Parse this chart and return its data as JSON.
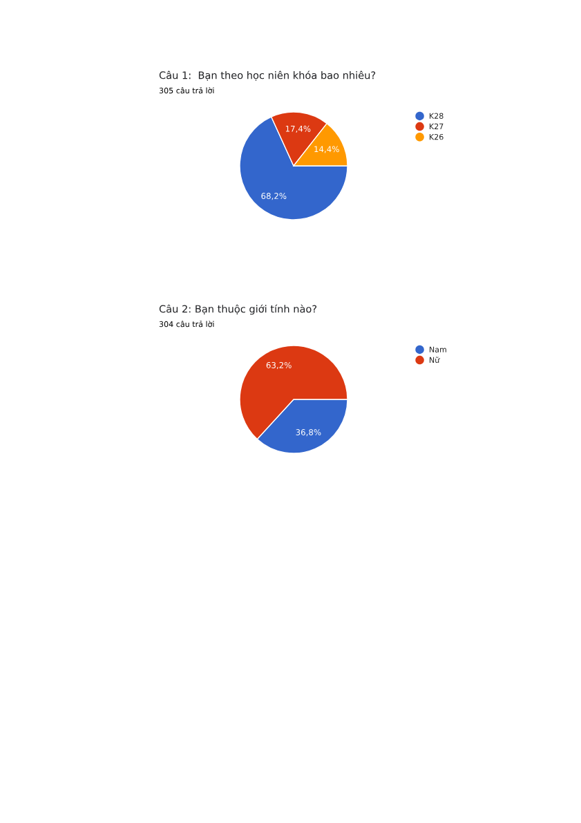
{
  "chart_data": [
    {
      "type": "pie",
      "title": "Câu 1:  Bạn theo học niên khóa bao nhiêu?",
      "subtitle": "305 câu trả lời",
      "categories": [
        "K28",
        "K27",
        "K26"
      ],
      "values": [
        68.2,
        17.4,
        14.4
      ],
      "value_labels": [
        "68,2%",
        "17,4%",
        "14,4%"
      ],
      "colors": [
        "#3366cc",
        "#dc3912",
        "#ff9900"
      ],
      "legend": "top right"
    },
    {
      "type": "pie",
      "title": "Câu 2: Bạn thuộc giới tính nào?",
      "subtitle": "304 câu trả lời",
      "categories": [
        "Nam",
        "Nữ"
      ],
      "values": [
        36.8,
        63.2
      ],
      "value_labels": [
        "36,8%",
        "63,2%"
      ],
      "colors": [
        "#3366cc",
        "#dc3912"
      ],
      "legend": "top right"
    }
  ]
}
